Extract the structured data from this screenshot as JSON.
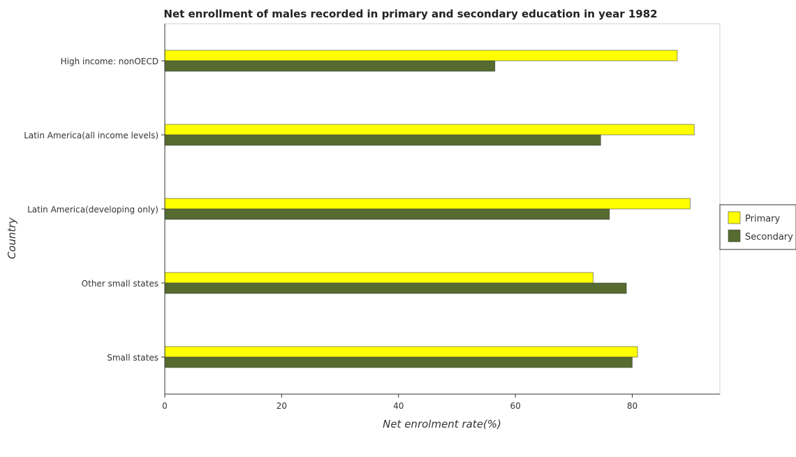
{
  "chart_data": {
    "type": "bar",
    "orientation": "horizontal",
    "title": "Net enrollment of males recorded in primary and secondary education in year 1982",
    "xlabel": "Net enrolment rate(%)",
    "ylabel": "Country",
    "categories": [
      "High income: nonOECD",
      "Latin America(all income levels)",
      "Latin America(developing only)",
      "Other small states",
      "Small states"
    ],
    "series": [
      {
        "name": "Primary",
        "color": "#ffff00",
        "values": [
          87.7,
          90.6,
          89.9,
          73.3,
          80.9
        ]
      },
      {
        "name": "Secondary",
        "color": "#556b2f",
        "values": [
          56.5,
          74.6,
          76.1,
          79.0,
          80.0
        ]
      }
    ],
    "xlim": [
      0,
      95
    ],
    "xticks": [
      0,
      20,
      40,
      60,
      80
    ],
    "grid": false,
    "legend_position": "right"
  }
}
